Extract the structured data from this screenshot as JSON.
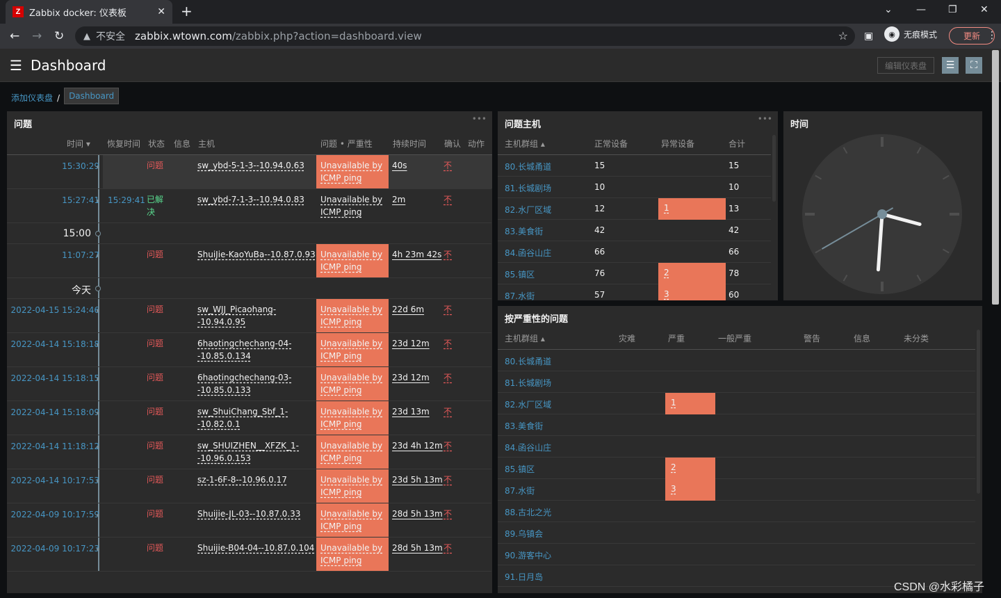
{
  "browser": {
    "tab_title": "Zabbix docker: 仪表板",
    "favicon_letter": "Z",
    "security_label": "不安全",
    "url_host": "zabbix.wtown.com",
    "url_path": "/zabbix.php?action=dashboard.view",
    "profile_label": "无痕模式",
    "update_label": "更新"
  },
  "header": {
    "title": "Dashboard",
    "edit_label": "编辑仪表盘"
  },
  "breadcrumb": {
    "parent": "添加仪表盘",
    "separator": "/",
    "current": "Dashboard"
  },
  "problems": {
    "title": "问题",
    "columns": [
      "时间 ▾",
      "恢复时间",
      "状态",
      "信息",
      "主机",
      "问题 • 严重性",
      "持续时间",
      "确认",
      "动作"
    ],
    "marks": [
      "15:00",
      "今天"
    ],
    "rows": [
      {
        "time": "15:30:29",
        "recovery": "",
        "status": "问题",
        "host": "sw_ybd-5-1-3--10.94.0.63",
        "problem": "Unavailable by ICMP ping",
        "duration": "40s",
        "ack": "不"
      },
      {
        "time": "15:27:41",
        "recovery": "15:29:41",
        "status": "已解决",
        "host": "sw_ybd-7-1-3--10.94.0.83",
        "problem": "Unavailable by ICMP ping",
        "duration": "2m",
        "ack": "不"
      },
      {
        "time": "11:07:27",
        "recovery": "",
        "status": "问题",
        "host": "ShuiJie-KaoYuBa--10.87.0.93",
        "problem": "Unavailable by ICMP ping",
        "duration": "4h 23m 42s",
        "ack": "不"
      },
      {
        "time": "2022-04-15 15:24:46",
        "recovery": "",
        "status": "问题",
        "host": "sw_WJJ_Picaohang--10.94.0.95",
        "problem": "Unavailable by ICMP ping",
        "duration": "22d 6m",
        "ack": "不"
      },
      {
        "time": "2022-04-14 15:18:18",
        "recovery": "",
        "status": "问题",
        "host": "6haotingchechang-04--10.85.0.134",
        "problem": "Unavailable by ICMP ping",
        "duration": "23d 12m",
        "ack": "不"
      },
      {
        "time": "2022-04-14 15:18:15",
        "recovery": "",
        "status": "问题",
        "host": "6haotingchechang-03--10.85.0.133",
        "problem": "Unavailable by ICMP ping",
        "duration": "23d 12m",
        "ack": "不"
      },
      {
        "time": "2022-04-14 15:18:09",
        "recovery": "",
        "status": "问题",
        "host": "sw_ShuiChang_Sbf_1--10.82.0.1",
        "problem": "Unavailable by ICMP ping",
        "duration": "23d 13m",
        "ack": "不"
      },
      {
        "time": "2022-04-14 11:18:12",
        "recovery": "",
        "status": "问题",
        "host": "sw_SHUIZHEN__XFZK_1--10.96.0.153",
        "problem": "Unavailable by ICMP ping",
        "duration": "23d 4h 12m",
        "ack": "不"
      },
      {
        "time": "2022-04-14 10:17:53",
        "recovery": "",
        "status": "问题",
        "host": "sz-1-6F-8--10.96.0.17",
        "problem": "Unavailable by ICMP ping",
        "duration": "23d 5h 13m",
        "ack": "不"
      },
      {
        "time": "2022-04-09 10:17:59",
        "recovery": "",
        "status": "问题",
        "host": "Shuijie-JL-03--10.87.0.33",
        "problem": "Unavailable by ICMP ping",
        "duration": "28d 5h 13m",
        "ack": "不"
      },
      {
        "time": "2022-04-09 10:17:23",
        "recovery": "",
        "status": "问题",
        "host": "Shuijie-B04-04--10.87.0.104",
        "problem": "Unavailable by ICMP ping",
        "duration": "28d 5h 13m",
        "ack": "不"
      }
    ]
  },
  "problem_hosts": {
    "title": "问题主机",
    "columns": [
      "主机群组 ▴",
      "正常设备",
      "异常设备",
      "合计"
    ],
    "rows": [
      {
        "group": "80.长城甬道",
        "ok": "15",
        "bad": "",
        "total": "15"
      },
      {
        "group": "81.长城剧场",
        "ok": "10",
        "bad": "",
        "total": "10"
      },
      {
        "group": "82.水厂区域",
        "ok": "12",
        "bad": "1",
        "total": "13"
      },
      {
        "group": "83.美食街",
        "ok": "42",
        "bad": "",
        "total": "42"
      },
      {
        "group": "84.函谷山庄",
        "ok": "66",
        "bad": "",
        "total": "66"
      },
      {
        "group": "85.镇区",
        "ok": "76",
        "bad": "2",
        "total": "78"
      },
      {
        "group": "87.水街",
        "ok": "57",
        "bad": "3",
        "total": "60"
      }
    ]
  },
  "clock": {
    "title": "时间",
    "hours": 3,
    "minutes": 30,
    "seconds": 40
  },
  "severity": {
    "title": "按严重性的问题",
    "columns": [
      "主机群组 ▴",
      "灾难",
      "严重",
      "一般严重",
      "警告",
      "信息",
      "未分类"
    ],
    "rows": [
      {
        "group": "80.长城甬道",
        "high": ""
      },
      {
        "group": "81.长城剧场",
        "high": ""
      },
      {
        "group": "82.水厂区域",
        "high": "1"
      },
      {
        "group": "83.美食街",
        "high": ""
      },
      {
        "group": "84.函谷山庄",
        "high": ""
      },
      {
        "group": "85.镇区",
        "high": "2"
      },
      {
        "group": "87.水街",
        "high": "3"
      },
      {
        "group": "88.古北之光",
        "high": ""
      },
      {
        "group": "89.乌镇会",
        "high": ""
      },
      {
        "group": "90.游客中心",
        "high": ""
      },
      {
        "group": "91.日月岛",
        "high": ""
      }
    ]
  },
  "colors": {
    "accent": "#4796c4",
    "problem": "#e45959",
    "resolved": "#59db8f",
    "severity_high": "#e97659",
    "panel": "#2b2b2b"
  },
  "watermark": "CSDN @水彩橘子"
}
